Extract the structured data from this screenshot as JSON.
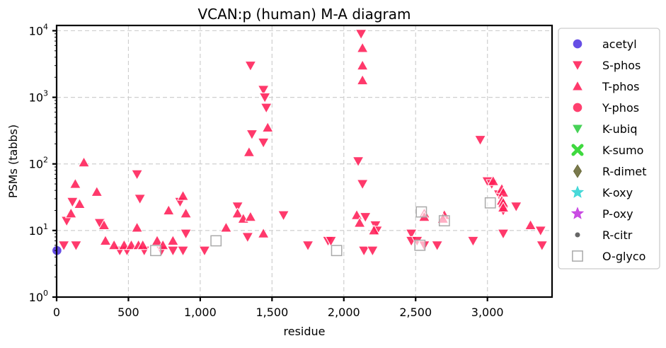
{
  "chart_data": {
    "type": "scatter",
    "title": "VCAN:p (human) M-A diagram",
    "xlabel": "residue",
    "ylabel": "PSMs (tabbs)",
    "xlim": [
      0,
      3450
    ],
    "ylim": [
      1,
      12000
    ],
    "yscale": "log",
    "grid": true,
    "legend_position": "outside-right",
    "x_ticks": [
      {
        "value": 0,
        "label": "0"
      },
      {
        "value": 500,
        "label": "500"
      },
      {
        "value": 1000,
        "label": "1,000"
      },
      {
        "value": 1500,
        "label": "1,500"
      },
      {
        "value": 2000,
        "label": "2,000"
      },
      {
        "value": 2500,
        "label": "2,500"
      },
      {
        "value": 3000,
        "label": "3,000"
      }
    ],
    "y_ticks": [
      {
        "value": 1,
        "base": "10",
        "exp": "0"
      },
      {
        "value": 10,
        "base": "10",
        "exp": "1"
      },
      {
        "value": 100,
        "base": "10",
        "exp": "2"
      },
      {
        "value": 1000,
        "base": "10",
        "exp": "3"
      },
      {
        "value": 10000,
        "base": "10",
        "exp": "4"
      }
    ],
    "series": [
      {
        "name": "acetyl",
        "marker": "circle",
        "color": "#4b2fe0",
        "points": [
          [
            2,
            5
          ]
        ]
      },
      {
        "name": "S-phos",
        "marker": "triangle-down",
        "color": "#ff1e56",
        "points": [
          [
            50,
            6
          ],
          [
            70,
            14
          ],
          [
            110,
            27
          ],
          [
            135,
            6
          ],
          [
            300,
            13
          ],
          [
            440,
            5
          ],
          [
            490,
            5
          ],
          [
            560,
            70
          ],
          [
            580,
            30
          ],
          [
            610,
            5
          ],
          [
            730,
            5
          ],
          [
            810,
            5
          ],
          [
            860,
            27
          ],
          [
            880,
            5
          ],
          [
            900,
            9
          ],
          [
            1030,
            5
          ],
          [
            1260,
            23
          ],
          [
            1330,
            8
          ],
          [
            1350,
            3000
          ],
          [
            1360,
            280
          ],
          [
            1440,
            1300
          ],
          [
            1450,
            1000
          ],
          [
            1460,
            700
          ],
          [
            1440,
            210
          ],
          [
            1580,
            17
          ],
          [
            1750,
            6
          ],
          [
            1890,
            7
          ],
          [
            1910,
            7
          ],
          [
            2100,
            110
          ],
          [
            2120,
            9000
          ],
          [
            2130,
            50
          ],
          [
            2150,
            16
          ],
          [
            2140,
            5
          ],
          [
            2200,
            5
          ],
          [
            2220,
            12
          ],
          [
            2230,
            10
          ],
          [
            2470,
            9
          ],
          [
            2470,
            7
          ],
          [
            2510,
            7
          ],
          [
            2560,
            6
          ],
          [
            2650,
            6
          ],
          [
            2900,
            7
          ],
          [
            2950,
            230
          ],
          [
            3000,
            55
          ],
          [
            3030,
            50
          ],
          [
            3080,
            35
          ],
          [
            3110,
            20
          ],
          [
            3110,
            9
          ],
          [
            3200,
            23
          ],
          [
            3370,
            10
          ],
          [
            3380,
            6
          ]
        ]
      },
      {
        "name": "T-phos",
        "marker": "triangle-up",
        "color": "#ff1e56",
        "points": [
          [
            100,
            18
          ],
          [
            130,
            50
          ],
          [
            160,
            25
          ],
          [
            190,
            105
          ],
          [
            280,
            38
          ],
          [
            330,
            12
          ],
          [
            340,
            7
          ],
          [
            400,
            6
          ],
          [
            470,
            6
          ],
          [
            520,
            6
          ],
          [
            570,
            6
          ],
          [
            560,
            11
          ],
          [
            600,
            6
          ],
          [
            700,
            7
          ],
          [
            740,
            6
          ],
          [
            780,
            20
          ],
          [
            810,
            7
          ],
          [
            880,
            33
          ],
          [
            900,
            18
          ],
          [
            1180,
            11
          ],
          [
            1260,
            18
          ],
          [
            1300,
            15
          ],
          [
            1350,
            16
          ],
          [
            1340,
            150
          ],
          [
            1440,
            9
          ],
          [
            1470,
            350
          ],
          [
            2090,
            17
          ],
          [
            2110,
            13
          ],
          [
            2130,
            3000
          ],
          [
            2130,
            5500
          ],
          [
            2130,
            1800
          ],
          [
            2210,
            10
          ],
          [
            2560,
            18
          ],
          [
            2560,
            16
          ],
          [
            2700,
            17
          ],
          [
            2690,
            15
          ],
          [
            3040,
            55
          ],
          [
            3100,
            42
          ],
          [
            3110,
            37
          ],
          [
            3100,
            28
          ],
          [
            3110,
            26
          ],
          [
            3110,
            22
          ],
          [
            3300,
            12
          ]
        ]
      },
      {
        "name": "Y-phos",
        "marker": "circle",
        "color": "#ff1e56",
        "points": []
      },
      {
        "name": "K-ubiq",
        "marker": "triangle-down",
        "color": "#2ecc40",
        "points": []
      },
      {
        "name": "K-sumo",
        "marker": "x",
        "color": "#3fd93f",
        "points": []
      },
      {
        "name": "R-dimet",
        "marker": "diamond",
        "color": "#6b6b3a",
        "points": []
      },
      {
        "name": "K-oxy",
        "marker": "star",
        "color": "#35d5d5",
        "points": []
      },
      {
        "name": "P-oxy",
        "marker": "star",
        "color": "#c43ae0",
        "points": []
      },
      {
        "name": "R-citr",
        "marker": "dot",
        "color": "#666666",
        "points": []
      },
      {
        "name": "O-glyco",
        "marker": "square-open",
        "color": "#aaaaaa",
        "points": [
          [
            690,
            5
          ],
          [
            1110,
            7
          ],
          [
            1950,
            5
          ],
          [
            2530,
            6
          ],
          [
            2540,
            19
          ],
          [
            2700,
            14
          ],
          [
            3020,
            26
          ]
        ]
      }
    ]
  }
}
